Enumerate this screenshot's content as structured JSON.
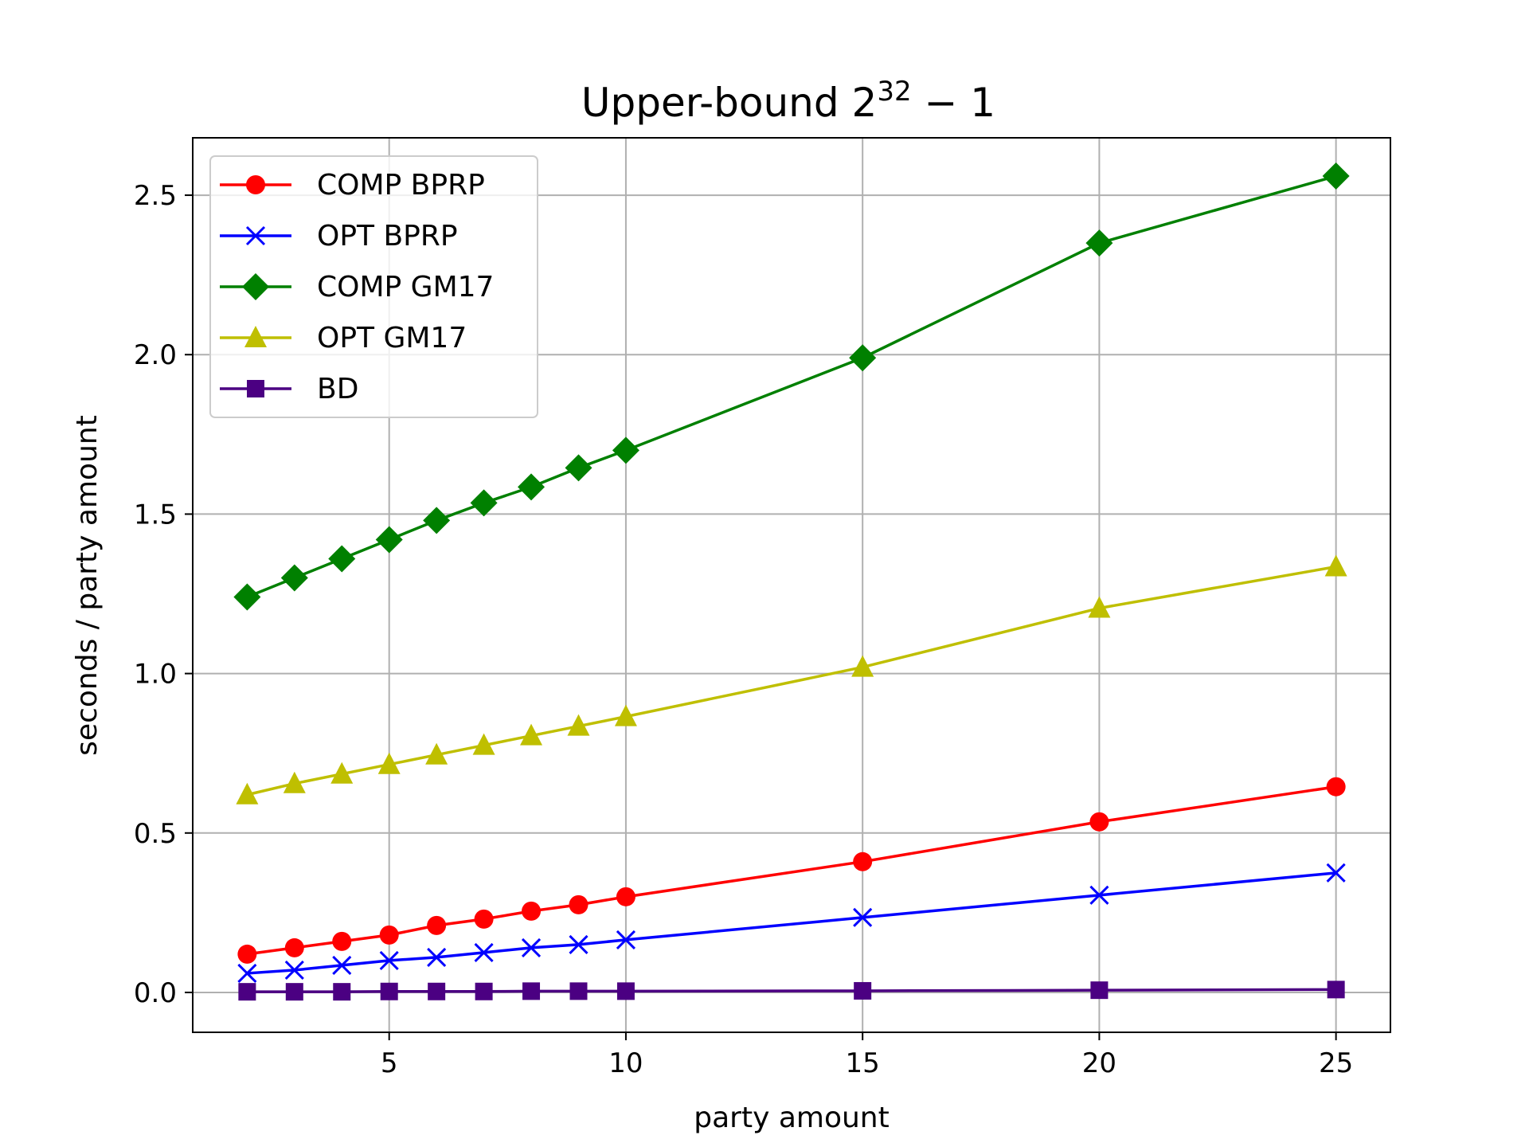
{
  "chart_data": {
    "type": "line",
    "title": {
      "base": "Upper-bound 2",
      "exponent": "32",
      "suffix": " − 1"
    },
    "xlabel": "party amount",
    "ylabel": "seconds / party amount",
    "xlim": [
      0.85,
      26.15
    ],
    "ylim": [
      -0.125,
      2.68
    ],
    "xticks": [
      5,
      10,
      15,
      20,
      25
    ],
    "yticks": [
      0.0,
      0.5,
      1.0,
      1.5,
      2.0,
      2.5
    ],
    "xtick_labels": [
      "5",
      "10",
      "15",
      "20",
      "25"
    ],
    "ytick_labels": [
      "0.0",
      "0.5",
      "1.0",
      "1.5",
      "2.0",
      "2.5"
    ],
    "grid": true,
    "legend_position": "top-left",
    "x": [
      2,
      3,
      4,
      5,
      6,
      7,
      8,
      9,
      10,
      15,
      20,
      25
    ],
    "series": [
      {
        "name": "COMP BPRP",
        "color": "#ff0000",
        "marker": "circle",
        "values": [
          0.12,
          0.14,
          0.16,
          0.18,
          0.21,
          0.23,
          0.255,
          0.275,
          0.3,
          0.41,
          0.535,
          0.645
        ]
      },
      {
        "name": "OPT BPRP",
        "color": "#0000ff",
        "marker": "x",
        "values": [
          0.06,
          0.07,
          0.085,
          0.1,
          0.11,
          0.125,
          0.14,
          0.15,
          0.165,
          0.235,
          0.305,
          0.375
        ]
      },
      {
        "name": "COMP GM17",
        "color": "#008000",
        "marker": "diamond",
        "values": [
          1.24,
          1.3,
          1.36,
          1.42,
          1.48,
          1.535,
          1.585,
          1.645,
          1.7,
          1.99,
          2.35,
          2.56
        ]
      },
      {
        "name": "OPT GM17",
        "color": "#bfbf00",
        "marker": "triangle",
        "values": [
          0.62,
          0.655,
          0.685,
          0.715,
          0.745,
          0.775,
          0.805,
          0.835,
          0.865,
          1.02,
          1.205,
          1.335
        ]
      },
      {
        "name": "BD",
        "color": "#4b0082",
        "marker": "square",
        "values": [
          0.002,
          0.002,
          0.002,
          0.003,
          0.003,
          0.003,
          0.004,
          0.004,
          0.004,
          0.005,
          0.007,
          0.009
        ]
      }
    ]
  }
}
